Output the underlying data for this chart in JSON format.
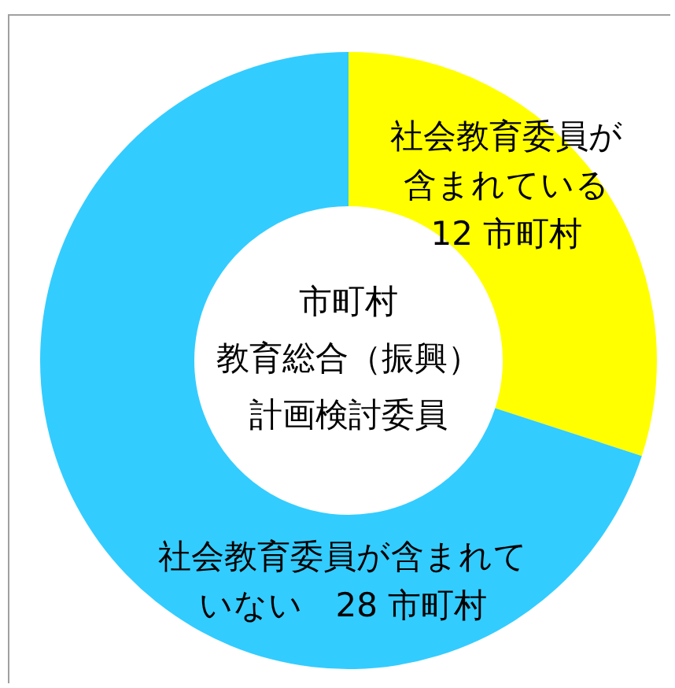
{
  "chart_data": {
    "type": "donut",
    "title": "市町村教育総合（振興）計画検討委員",
    "categories": [
      "社会教育委員が含まれている",
      "社会教育委員が含まれていない"
    ],
    "values": [
      12,
      28
    ],
    "colors": [
      "#ffff00",
      "#33ccff"
    ],
    "value_labels": [
      "12 市町村",
      "28 市町村"
    ],
    "legend": false
  }
}
